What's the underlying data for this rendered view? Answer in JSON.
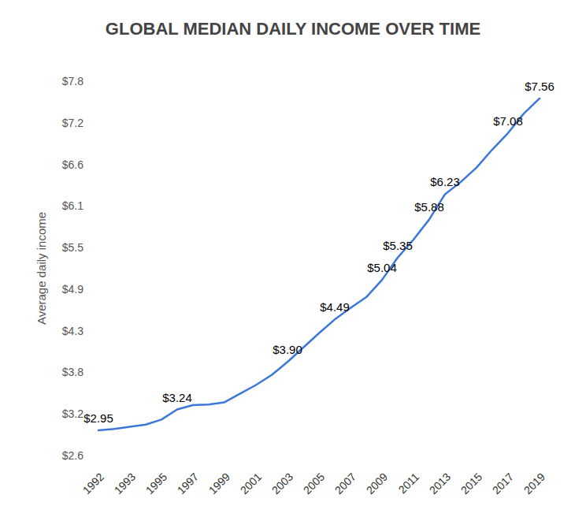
{
  "chart_data": {
    "type": "line",
    "title": "GLOBAL MEDIAN DAILY INCOME OVER TIME",
    "y_label": "Average daily income",
    "categories": [
      "1992",
      null,
      "1993",
      null,
      "1995",
      null,
      "1997",
      null,
      "1999",
      null,
      "2001",
      null,
      "2003",
      null,
      "2005",
      null,
      "2007",
      null,
      "2009",
      null,
      "2011",
      null,
      "2013",
      null,
      "2015",
      null,
      "2017",
      null,
      "2019"
    ],
    "values": [
      2.95,
      2.97,
      3.0,
      3.03,
      3.1,
      3.24,
      3.3,
      3.31,
      3.34,
      3.46,
      3.58,
      3.72,
      3.9,
      4.1,
      4.3,
      4.49,
      4.65,
      4.8,
      5.04,
      5.35,
      5.6,
      5.88,
      6.23,
      6.4,
      6.6,
      6.85,
      7.08,
      7.35,
      7.56
    ],
    "value_labels": [
      "$2.95",
      null,
      null,
      null,
      null,
      "$3.24",
      null,
      null,
      null,
      null,
      null,
      null,
      "$3.90",
      null,
      null,
      "$4.49",
      null,
      null,
      "$5.04",
      "$5.35",
      null,
      "$5.88",
      "$6.23",
      null,
      null,
      null,
      "$7.08",
      null,
      "$7.56"
    ],
    "data_labels": true,
    "color": "#3c78d8",
    "ylim": [
      2.6,
      7.8
    ],
    "yticks": [
      {
        "value": 2.6,
        "label": "$2.6"
      },
      {
        "value": 3.1778,
        "label": "$3.2"
      },
      {
        "value": 3.7556,
        "label": "$3.8"
      },
      {
        "value": 4.3333,
        "label": "$4.3"
      },
      {
        "value": 4.9111,
        "label": "$4.9"
      },
      {
        "value": 5.4889,
        "label": "$5.5"
      },
      {
        "value": 6.0667,
        "label": "$6.1"
      },
      {
        "value": 6.6444,
        "label": "$6.6"
      },
      {
        "value": 7.2222,
        "label": "$7.2"
      },
      {
        "value": 7.8,
        "label": "$7.8"
      }
    ],
    "grid": false
  }
}
